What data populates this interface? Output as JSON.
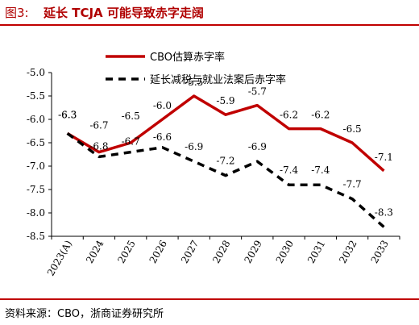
{
  "header": {
    "fig_label": "图3:",
    "title": "延长 TCJA 可能导致赤字走阔"
  },
  "source": "资料来源：CBO，浙商证券研究所",
  "chart_data": {
    "type": "line",
    "title": "",
    "xlabel": "",
    "ylabel": "",
    "categories": [
      "2023(A)",
      "2024",
      "2025",
      "2026",
      "2027",
      "2028",
      "2029",
      "2030",
      "2031",
      "2032",
      "2033"
    ],
    "ylim": [
      -8.5,
      -5.0
    ],
    "yticks": [
      "-5.0",
      "-5.5",
      "-6.0",
      "-6.5",
      "-7.0",
      "-7.5",
      "-8.0",
      "-8.5"
    ],
    "legend_position": "top-left",
    "series": [
      {
        "name": "CBO估算赤字率",
        "color": "#c00000",
        "dash": "solid",
        "values": [
          -6.3,
          -6.7,
          -6.5,
          -6.0,
          -5.5,
          -5.9,
          -5.7,
          -6.2,
          -6.2,
          -6.5,
          -7.1
        ],
        "labels": [
          "-6.3",
          "-6.7",
          "-6.5",
          "-6.0",
          "-5.5",
          "-5.9",
          "-5.7",
          "-6.2",
          "-6.2",
          "-6.5",
          "-7.1"
        ]
      },
      {
        "name": "延长减税与就业法案后赤字率",
        "color": "#000000",
        "dash": "dashed",
        "values": [
          -6.3,
          -6.8,
          -6.7,
          -6.6,
          -6.9,
          -7.2,
          -6.9,
          -7.4,
          -7.4,
          -7.7,
          -8.3
        ],
        "labels": [
          "-6.3",
          "-6.8",
          "-6.7",
          "-6.6",
          "-6.9",
          "-7.2",
          "-6.9",
          "-7.4",
          "-7.4",
          "-7.7",
          "-8.3"
        ]
      }
    ]
  }
}
